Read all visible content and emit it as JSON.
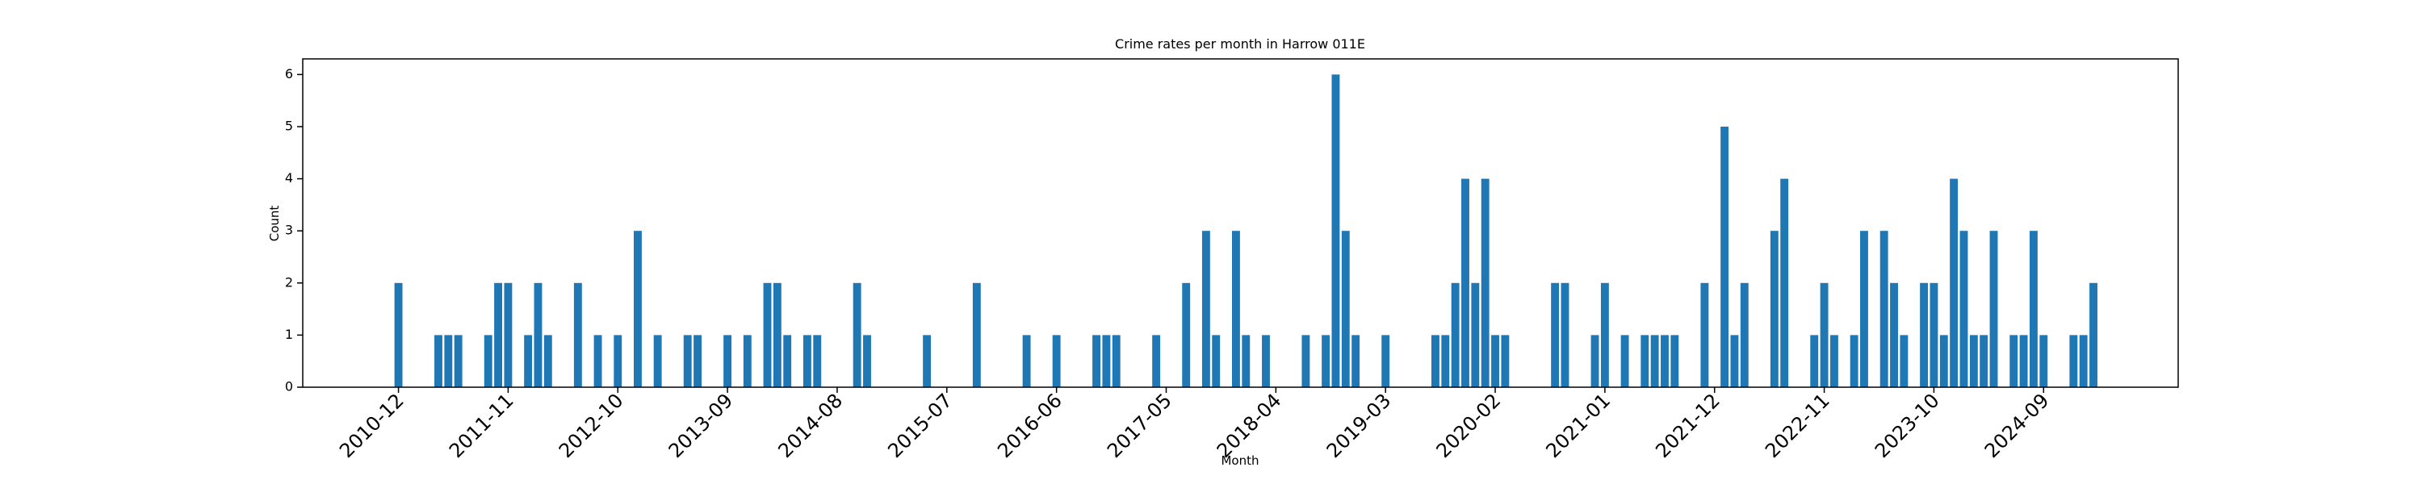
{
  "chart_data": {
    "type": "bar",
    "title": "Crime rates per month in Harrow 011E",
    "xlabel": "Month",
    "ylabel": "Count",
    "color": "#1f77b4",
    "categories": [
      "2010-12",
      null,
      null,
      null,
      null,
      null,
      null,
      null,
      null,
      null,
      null,
      "2011-11",
      null,
      null,
      null,
      null,
      null,
      null,
      null,
      null,
      null,
      null,
      "2012-10",
      null,
      null,
      null,
      null,
      null,
      null,
      null,
      null,
      null,
      null,
      "2013-09",
      null,
      null,
      null,
      null,
      null,
      null,
      null,
      null,
      null,
      null,
      "2014-08",
      null,
      null,
      null,
      null,
      null,
      null,
      null,
      null,
      null,
      null,
      "2015-07",
      null,
      null,
      null,
      null,
      null,
      null,
      null,
      null,
      null,
      null,
      "2016-06",
      null,
      null,
      null,
      null,
      null,
      null,
      null,
      null,
      null,
      null,
      "2017-05",
      null,
      null,
      null,
      null,
      null,
      null,
      null,
      null,
      null,
      null,
      "2018-04",
      null,
      null,
      null,
      null,
      null,
      null,
      null,
      null,
      null,
      null,
      "2019-03",
      null,
      null,
      null,
      null,
      null,
      null,
      null,
      null,
      null,
      null,
      "2020-02",
      null,
      null,
      null,
      null,
      null,
      null,
      null,
      null,
      null,
      null,
      "2021-01",
      null,
      null,
      null,
      null,
      null,
      null,
      null,
      null,
      null,
      null,
      "2021-12",
      null,
      null,
      null,
      null,
      null,
      null,
      null,
      null,
      null,
      null,
      "2022-11",
      null,
      null,
      null,
      null,
      null,
      null,
      null,
      null,
      null,
      null,
      "2023-10",
      null,
      null,
      null,
      null,
      null,
      null,
      null,
      null,
      null,
      null,
      "2024-09",
      null,
      null,
      null,
      null,
      null
    ],
    "values": [
      2,
      0,
      0,
      0,
      1,
      1,
      1,
      0,
      0,
      1,
      2,
      2,
      0,
      1,
      2,
      1,
      0,
      0,
      2,
      0,
      1,
      0,
      1,
      0,
      3,
      0,
      1,
      0,
      0,
      1,
      1,
      0,
      0,
      1,
      0,
      1,
      0,
      2,
      2,
      1,
      0,
      1,
      1,
      0,
      0,
      0,
      2,
      1,
      0,
      0,
      0,
      0,
      0,
      1,
      0,
      0,
      0,
      0,
      2,
      0,
      0,
      0,
      0,
      1,
      0,
      0,
      1,
      0,
      0,
      0,
      1,
      1,
      1,
      0,
      0,
      0,
      1,
      0,
      0,
      2,
      0,
      3,
      1,
      0,
      3,
      1,
      0,
      1,
      0,
      0,
      0,
      1,
      0,
      1,
      6,
      3,
      1,
      0,
      0,
      1,
      0,
      0,
      0,
      0,
      1,
      1,
      2,
      4,
      2,
      4,
      1,
      1,
      0,
      0,
      0,
      0,
      2,
      2,
      0,
      0,
      1,
      2,
      0,
      1,
      0,
      1,
      1,
      1,
      1,
      0,
      0,
      2,
      0,
      5,
      1,
      2,
      0,
      0,
      3,
      4,
      0,
      0,
      1,
      2,
      1,
      0,
      1,
      3,
      0,
      3,
      2,
      1,
      0,
      2,
      2,
      1,
      4,
      3,
      1,
      1,
      3,
      0,
      1,
      1,
      3,
      1,
      0,
      0,
      1,
      1,
      2
    ],
    "ylim": [
      0,
      6.3
    ],
    "yticks": [
      0,
      1,
      2,
      3,
      4,
      5,
      6
    ]
  }
}
